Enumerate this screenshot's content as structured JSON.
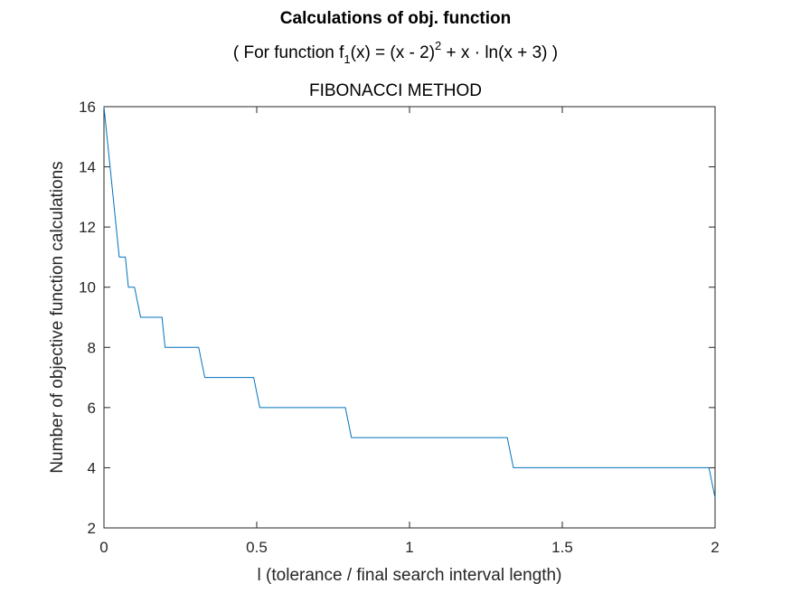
{
  "chart_data": {
    "type": "line",
    "title": "Calculations of obj. function",
    "subtitle": {
      "prefix": "( For function f",
      "sub": "1",
      "middle": "(x) = (x - 2)",
      "sup": "2",
      "suffix": " + x · ln(x + 3) )"
    },
    "method": "FIBONACCI METHOD",
    "xlabel": "l (tolerance / final search interval length)",
    "ylabel": "Number of objective function calculations",
    "xlim": [
      0,
      2
    ],
    "ylim": [
      2,
      16
    ],
    "xticks": [
      0,
      0.5,
      1,
      1.5,
      2
    ],
    "xtick_labels": [
      "0",
      "0.5",
      "1",
      "1.5",
      "2"
    ],
    "yticks": [
      2,
      4,
      6,
      8,
      10,
      12,
      14,
      16
    ],
    "ytick_labels": [
      "2",
      "4",
      "6",
      "8",
      "10",
      "12",
      "14",
      "16"
    ],
    "grid": false,
    "series": [
      {
        "color": "#0072BD",
        "x": [
          0,
          0.01,
          0.02,
          0.03,
          0.04,
          0.05,
          0.06,
          0.07,
          0.08,
          0.09,
          0.1,
          0.11,
          0.12,
          0.13,
          0.19,
          0.2,
          0.31,
          0.32,
          0.33,
          0.49,
          0.5,
          0.51,
          0.79,
          0.8,
          0.81,
          1.32,
          1.33,
          1.34,
          1.98,
          1.99,
          2.0
        ],
        "y": [
          16,
          15,
          14,
          13,
          12,
          11,
          11,
          11,
          10,
          10,
          10,
          9.5,
          9,
          9,
          9,
          8,
          8,
          7.5,
          7,
          7,
          6.5,
          6,
          6,
          5.5,
          5,
          5,
          4.5,
          4,
          4,
          3.5,
          3
        ]
      }
    ]
  }
}
